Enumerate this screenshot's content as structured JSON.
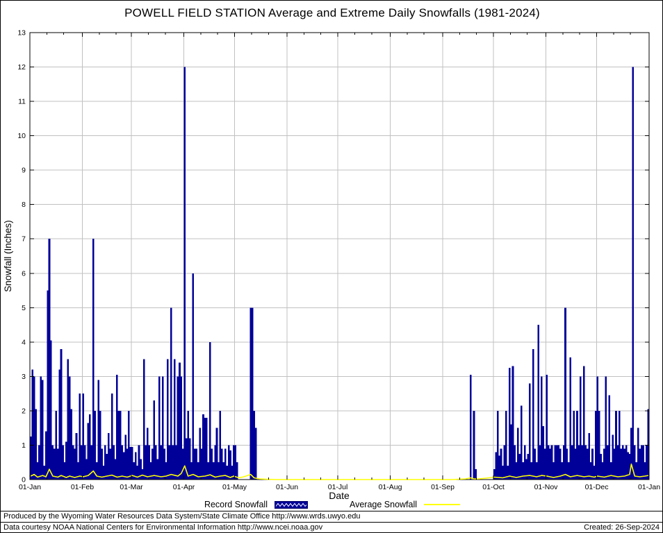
{
  "colors": {
    "bar": "#000099",
    "average": "#ffff00",
    "grid": "#c0c0c0",
    "axis": "#000000",
    "text": "#000000"
  },
  "legend": {
    "record_label": "Record Snowfall",
    "average_label": "Average Snowfall"
  },
  "footer": {
    "line1": "Produced by the Wyoming Water Resources Data System/State Climate Office http://www.wrds.uwyo.edu",
    "line2": "Data courtesy NOAA National Centers for Environmental Information http://www.ncei.noaa.gov",
    "created": "Created: 26-Sep-2024"
  },
  "chart_data": {
    "type": "bar",
    "title": "POWELL FIELD STATION Average and Extreme Daily Snowfalls (1981-2024)",
    "xlabel": "Date",
    "ylabel": "Snowfall (Inches)",
    "ylim": [
      0,
      13
    ],
    "grid": true,
    "legend_position": "bottom",
    "y_ticks": [
      0,
      1,
      2,
      3,
      4,
      5,
      6,
      7,
      8,
      9,
      10,
      11,
      12,
      13
    ],
    "x_tick_labels": [
      "01-Jan",
      "01-Feb",
      "01-Mar",
      "01-Apr",
      "01-May",
      "01-Jun",
      "01-Jul",
      "01-Aug",
      "01-Sep",
      "01-Oct",
      "01-Nov",
      "01-Dec",
      "01-Jan"
    ],
    "month_days": [
      31,
      29,
      31,
      30,
      31,
      30,
      31,
      31,
      30,
      31,
      30,
      31
    ],
    "series": [
      {
        "name": "Record Snowfall",
        "type": "bar",
        "color": "#000099",
        "values_by_month": [
          [
            1.25,
            3.2,
            3.0,
            2.05,
            0.5,
            1.0,
            3.0,
            2.9,
            0.4,
            1.4,
            5.5,
            7.0,
            4.05,
            1.0,
            0.9,
            2.0,
            0.9,
            3.2,
            3.8,
            1.0,
            0.5,
            1.1,
            3.5,
            3.0,
            2.05,
            1.0,
            0.9,
            1.35,
            0.5,
            2.5,
            1.0
          ],
          [
            2.5,
            1.0,
            0.6,
            1.65,
            1.9,
            1.0,
            7.0,
            2.0,
            0.5,
            2.9,
            2.0,
            0.9,
            0.4,
            1.0,
            0.75,
            1.35,
            0.9,
            2.5,
            1.0,
            0.6,
            3.05,
            2.0,
            2.0,
            1.0,
            0.8,
            1.3,
            0.9,
            2.0,
            0.95
          ],
          [
            0.95,
            0.5,
            0.8,
            0.4,
            1.0,
            0.6,
            0.3,
            3.5,
            1.0,
            1.5,
            1.0,
            0.5,
            0.9,
            2.3,
            1.0,
            0.6,
            3.0,
            1.0,
            3.0,
            0.9,
            0.5,
            3.5,
            1.0,
            5.0,
            1.0,
            3.5,
            1.0,
            3.0,
            3.4,
            3.0,
            0.9
          ],
          [
            12.0,
            1.2,
            2.0,
            1.2,
            0.5,
            6.0,
            0.9,
            0.9,
            0.5,
            1.5,
            0.9,
            1.9,
            1.8,
            1.8,
            0.5,
            4.0,
            0.9,
            0.5,
            1.0,
            1.5,
            0.5,
            2.0,
            0.9,
            0.5,
            0.9,
            0.4,
            1.0,
            0.85,
            0.4,
            1.0
          ],
          [
            1.0,
            0.5,
            0,
            0,
            0,
            0,
            0,
            0,
            0,
            5.0,
            5.0,
            2.0,
            1.5,
            0,
            0,
            0,
            0,
            0,
            0,
            0,
            0,
            0,
            0,
            0,
            0,
            0,
            0,
            0,
            0,
            0,
            0
          ],
          [
            0,
            0,
            0,
            0,
            0,
            0,
            0,
            0,
            0,
            0,
            0,
            0,
            0,
            0,
            0,
            0,
            0,
            0,
            0,
            0,
            0,
            0,
            0,
            0,
            0,
            0,
            0,
            0,
            0,
            0
          ],
          [
            0,
            0,
            0,
            0,
            0,
            0,
            0,
            0,
            0,
            0,
            0,
            0,
            0,
            0,
            0,
            0,
            0,
            0,
            0,
            0,
            0,
            0,
            0,
            0,
            0,
            0,
            0,
            0,
            0,
            0,
            0
          ],
          [
            0,
            0,
            0,
            0,
            0,
            0,
            0,
            0,
            0,
            0,
            0,
            0,
            0,
            0,
            0,
            0,
            0,
            0,
            0,
            0,
            0,
            0,
            0,
            0,
            0,
            0,
            0,
            0,
            0,
            0,
            0
          ],
          [
            0,
            0,
            0,
            0,
            0,
            0,
            0,
            0,
            0,
            0,
            0,
            0,
            0,
            0,
            0,
            0,
            3.05,
            0,
            2.0,
            0.3,
            0,
            0,
            0,
            0,
            0,
            0,
            0,
            0,
            0,
            0
          ],
          [
            0.3,
            0.8,
            2.0,
            0.7,
            0.9,
            0.4,
            1.0,
            2.0,
            0.4,
            3.25,
            1.6,
            3.3,
            1.0,
            0.5,
            1.5,
            0.75,
            2.15,
            0.5,
            1.0,
            0.6,
            0.75,
            2.8,
            0.5,
            3.8,
            0.9,
            0.5,
            4.5,
            1.0,
            3.0,
            1.55,
            0.9
          ],
          [
            3.05,
            1.0,
            0.9,
            1.0,
            0.5,
            1.0,
            1.0,
            1.0,
            0.9,
            0.5,
            1.0,
            5.0,
            0.9,
            0.5,
            3.55,
            1.0,
            2.0,
            0.9,
            2.0,
            1.0,
            3.0,
            1.0,
            3.3,
            1.0,
            0.9,
            1.35,
            0.5,
            0.9,
            0.4,
            2.0
          ],
          [
            3.0,
            2.0,
            0.75,
            0.5,
            0.9,
            3.0,
            1.0,
            2.45,
            0.5,
            1.3,
            0.9,
            2.0,
            1.0,
            2.0,
            0.9,
            1.0,
            0.9,
            1.0,
            0.8,
            0.75,
            1.5,
            12.0,
            1.0,
            0.5,
            1.5,
            0.9,
            1.0,
            1.0,
            0.5,
            1.0,
            2.05
          ]
        ]
      },
      {
        "name": "Average Snowfall",
        "type": "line",
        "color": "#ffff00",
        "points_day_value": [
          [
            1,
            0.1
          ],
          [
            3,
            0.15
          ],
          [
            5,
            0.07
          ],
          [
            8,
            0.12
          ],
          [
            10,
            0.08
          ],
          [
            12,
            0.3
          ],
          [
            14,
            0.1
          ],
          [
            17,
            0.07
          ],
          [
            19,
            0.12
          ],
          [
            22,
            0.06
          ],
          [
            24,
            0.1
          ],
          [
            27,
            0.06
          ],
          [
            30,
            0.1
          ],
          [
            32,
            0.08
          ],
          [
            35,
            0.12
          ],
          [
            38,
            0.25
          ],
          [
            40,
            0.1
          ],
          [
            43,
            0.07
          ],
          [
            46,
            0.1
          ],
          [
            49,
            0.13
          ],
          [
            52,
            0.07
          ],
          [
            55,
            0.1
          ],
          [
            58,
            0.07
          ],
          [
            61,
            0.12
          ],
          [
            64,
            0.07
          ],
          [
            67,
            0.13
          ],
          [
            70,
            0.08
          ],
          [
            74,
            0.12
          ],
          [
            78,
            0.08
          ],
          [
            81,
            0.1
          ],
          [
            84,
            0.15
          ],
          [
            88,
            0.1
          ],
          [
            90,
            0.18
          ],
          [
            92,
            0.4
          ],
          [
            94,
            0.1
          ],
          [
            97,
            0.15
          ],
          [
            100,
            0.08
          ],
          [
            104,
            0.1
          ],
          [
            107,
            0.14
          ],
          [
            110,
            0.07
          ],
          [
            113,
            0.1
          ],
          [
            116,
            0.12
          ],
          [
            119,
            0.06
          ],
          [
            121,
            0.1
          ],
          [
            124,
            0.05
          ],
          [
            127,
            0.08
          ],
          [
            131,
            0.15
          ],
          [
            133,
            0.05
          ],
          [
            136,
            0.02
          ],
          [
            140,
            0.01
          ],
          [
            146,
            0.0
          ],
          [
            250,
            0.0
          ],
          [
            254,
            0.01
          ],
          [
            258,
            0.02
          ],
          [
            261,
            0.05
          ],
          [
            263,
            0.02
          ],
          [
            266,
            0.02
          ],
          [
            270,
            0.04
          ],
          [
            275,
            0.07
          ],
          [
            280,
            0.05
          ],
          [
            284,
            0.1
          ],
          [
            288,
            0.06
          ],
          [
            292,
            0.1
          ],
          [
            296,
            0.12
          ],
          [
            300,
            0.08
          ],
          [
            303,
            0.12
          ],
          [
            306,
            0.1
          ],
          [
            310,
            0.06
          ],
          [
            314,
            0.1
          ],
          [
            317,
            0.15
          ],
          [
            320,
            0.08
          ],
          [
            324,
            0.12
          ],
          [
            328,
            0.08
          ],
          [
            331,
            0.1
          ],
          [
            334,
            0.07
          ],
          [
            336,
            0.1
          ],
          [
            340,
            0.07
          ],
          [
            344,
            0.12
          ],
          [
            348,
            0.08
          ],
          [
            352,
            0.1
          ],
          [
            355,
            0.15
          ],
          [
            356,
            0.45
          ],
          [
            358,
            0.1
          ],
          [
            361,
            0.08
          ],
          [
            364,
            0.1
          ],
          [
            366,
            0.12
          ]
        ]
      }
    ]
  }
}
